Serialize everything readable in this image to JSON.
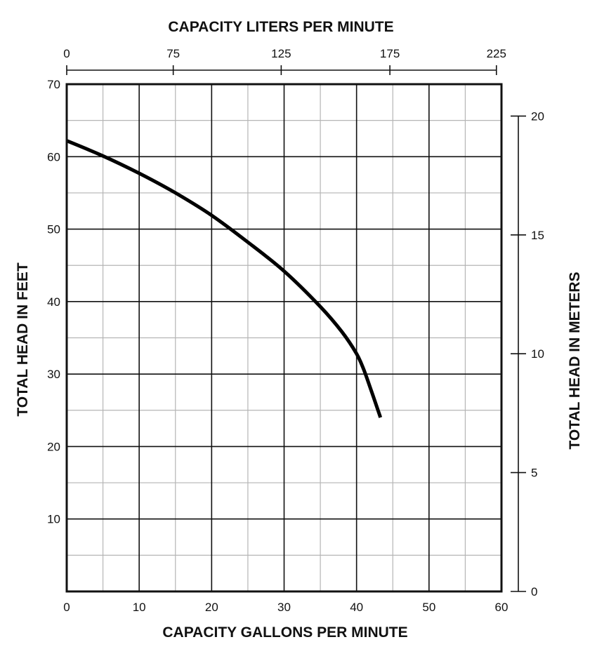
{
  "chart_data": {
    "type": "line",
    "title": "",
    "xlabel": "CAPACITY GALLONS PER MINUTE",
    "ylabel": "TOTAL HEAD IN FEET",
    "x2label": "CAPACITY LITERS PER MINUTE",
    "y2label": "TOTAL HEAD IN METERS",
    "xlim": [
      0,
      60
    ],
    "ylim": [
      0,
      70
    ],
    "x_ticks": [
      0,
      10,
      20,
      30,
      40,
      50,
      60
    ],
    "y_ticks": [
      10,
      20,
      30,
      40,
      50,
      60,
      70
    ],
    "x2_ticks": [
      {
        "label": "0",
        "at_gpm": 0
      },
      {
        "label": "75",
        "at_gpm": 14.7
      },
      {
        "label": "125",
        "at_gpm": 29.6
      },
      {
        "label": "175",
        "at_gpm": 44.6
      },
      {
        "label": "225",
        "at_gpm": 59.3
      }
    ],
    "y2_ticks": [
      {
        "label": "20",
        "at_ft": 65.6
      },
      {
        "label": "15",
        "at_ft": 49.2
      },
      {
        "label": "10",
        "at_ft": 32.8
      },
      {
        "label": "5",
        "at_ft": 16.4
      },
      {
        "label": "0",
        "at_ft": 0
      }
    ],
    "grid": true,
    "minor_grid": true,
    "series": [
      {
        "x": [
          0,
          5,
          10,
          15,
          20,
          25,
          30,
          35,
          38,
          40,
          41,
          42,
          43.3
        ],
        "y": [
          62.2,
          60.1,
          57.7,
          55.0,
          51.9,
          48.2,
          44.2,
          39.3,
          35.8,
          32.8,
          30.6,
          27.8,
          24.0
        ]
      }
    ]
  }
}
